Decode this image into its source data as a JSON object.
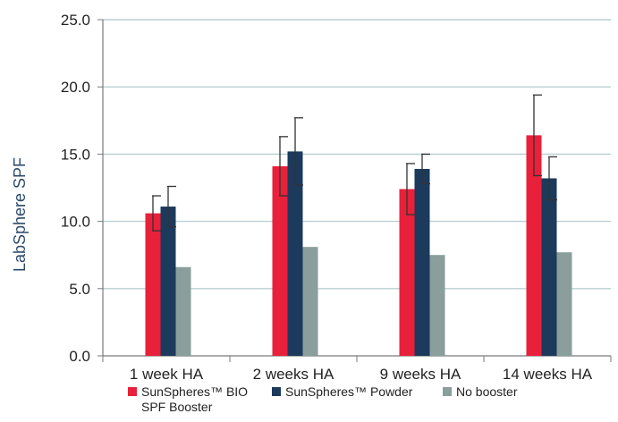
{
  "colors": {
    "grid": "#b8d0d2",
    "axis": "#7a7a7a",
    "error_bar": "#333333"
  },
  "chart_data": {
    "type": "bar",
    "title": "",
    "xlabel": "",
    "ylabel": "LabSphere SPF",
    "ylim": [
      0,
      25
    ],
    "yticks": [
      "0.0",
      "5.0",
      "10.0",
      "15.0",
      "20.0",
      "25.0"
    ],
    "grid": true,
    "legend_position": "bottom",
    "categories": [
      "1 week HA",
      "2 weeks HA",
      "9 weeks HA",
      "14 weeks HA"
    ],
    "series": [
      {
        "name": "SunSpheres™ BIO SPF Booster",
        "name_lines": [
          "SunSpheres™ BIO",
          "SPF Booster"
        ],
        "color": "#e8203a",
        "values": [
          10.6,
          14.1,
          12.4,
          16.4
        ],
        "errors": [
          1.3,
          2.2,
          1.9,
          3.0
        ]
      },
      {
        "name": "SunSpheres™ Powder",
        "name_lines": [
          "SunSpheres™ Powder"
        ],
        "color": "#1b3a5c",
        "values": [
          11.1,
          15.2,
          13.9,
          13.2
        ],
        "errors": [
          1.5,
          2.5,
          1.1,
          1.6
        ]
      },
      {
        "name": "No booster",
        "name_lines": [
          "No booster"
        ],
        "color": "#8a9e9c",
        "values": [
          6.6,
          8.1,
          7.5,
          7.7
        ],
        "errors": [
          0,
          0,
          0,
          0
        ]
      }
    ]
  }
}
